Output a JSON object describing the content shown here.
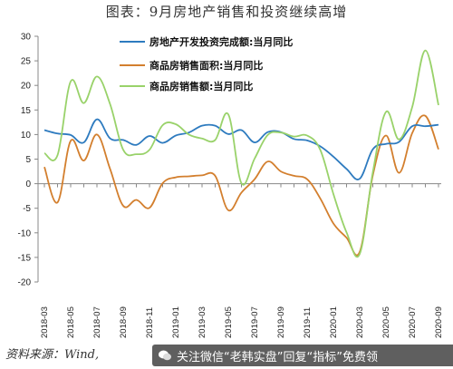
{
  "title": "图表：9月房地产销售和投资继续高增",
  "source": "资料来源：Wind,",
  "watermark": "关注微信“老韩实盘”回复“指标”免费领",
  "colors": {
    "series1": "#2e7bbf",
    "series2": "#d37f2e",
    "series3": "#99d26a"
  },
  "chart_data": {
    "type": "line",
    "title": "图表：9月房地产销售和投资继续高增",
    "ylim": [
      -20,
      30
    ],
    "yticks": [
      30,
      25,
      20,
      15,
      10,
      5,
      0,
      -5,
      -10,
      -15,
      -20
    ],
    "xtick_labels": [
      "2018-03",
      "2018-05",
      "2018-07",
      "2018-09",
      "2018-11",
      "2019-01",
      "2019-03",
      "2019-05",
      "2019-07",
      "2019-09",
      "2019-11",
      "2020-01",
      "2020-03",
      "2020-05",
      "2020-07",
      "2020-09"
    ],
    "x": [
      "2018-03",
      "2018-04",
      "2018-05",
      "2018-06",
      "2018-07",
      "2018-08",
      "2018-09",
      "2018-10",
      "2018-11",
      "2018-12",
      "2019-01",
      "2019-02",
      "2019-03",
      "2019-04",
      "2019-05",
      "2019-06",
      "2019-07",
      "2019-08",
      "2019-09",
      "2019-10",
      "2019-11",
      "2019-12",
      "2020-01",
      "2020-02",
      "2020-03",
      "2020-04",
      "2020-05",
      "2020-06",
      "2020-07",
      "2020-08",
      "2020-09"
    ],
    "legend_position": "top-right",
    "grid": false,
    "series": [
      {
        "name": "房地产开发投资完成额:当月同比",
        "values": [
          10.9,
          10.2,
          9.9,
          8.4,
          13.1,
          9.2,
          8.9,
          7.9,
          9.7,
          8.3,
          9.8,
          10.4,
          11.8,
          11.8,
          10.1,
          10.9,
          8.4,
          10.5,
          10.5,
          9.1,
          8.8,
          7.6,
          5.5,
          3.0,
          1.0,
          7.0,
          8.1,
          8.5,
          11.7,
          11.7,
          12.0
        ]
      },
      {
        "name": "商品房销售面积:当月同比",
        "values": [
          3.4,
          -3.8,
          8.7,
          4.7,
          10.0,
          3.0,
          -4.5,
          -3.3,
          -4.9,
          0.1,
          1.3,
          1.5,
          1.7,
          1.6,
          -5.4,
          -1.8,
          0.9,
          4.5,
          2.5,
          1.6,
          0.9,
          -3.0,
          -8.1,
          -11.0,
          -13.9,
          1.7,
          9.8,
          2.2,
          10.3,
          13.8,
          7.0
        ]
      },
      {
        "name": "商品房销售额:当月同比",
        "values": [
          6.2,
          5.8,
          20.8,
          16.4,
          21.8,
          16.2,
          6.9,
          6.0,
          6.9,
          11.9,
          12.1,
          10.0,
          9.2,
          8.9,
          14.1,
          0.1,
          5.1,
          9.9,
          10.4,
          9.6,
          9.8,
          6.9,
          -2.1,
          -9.9,
          -14.3,
          2.3,
          14.6,
          9.0,
          15.6,
          27.1,
          16.0
        ]
      }
    ]
  }
}
